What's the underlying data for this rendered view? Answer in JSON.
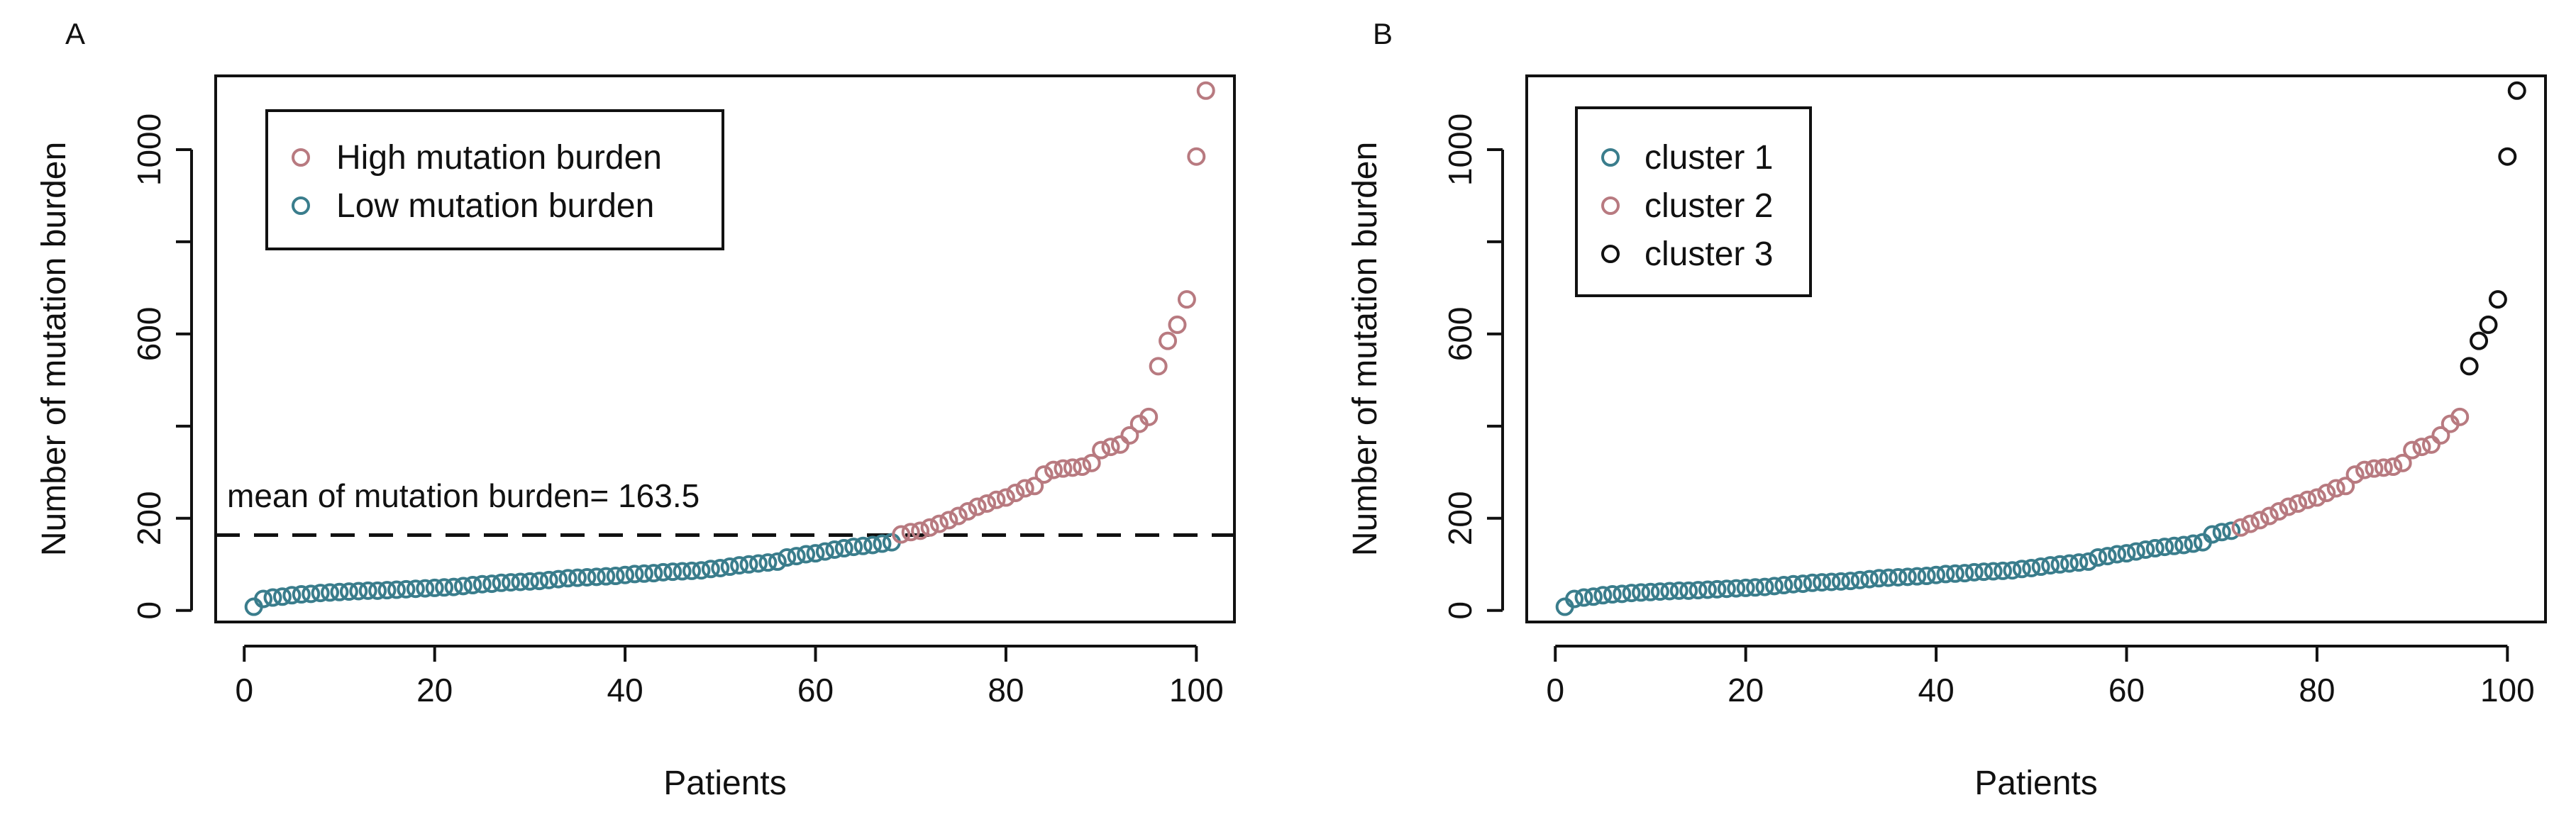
{
  "figure": {
    "panels": [
      {
        "letter": "A",
        "title": "",
        "xlabel": "Patients",
        "ylabel": "Number of mutation burden",
        "xticks": [
          0,
          20,
          40,
          60,
          80,
          100
        ],
        "yticks": [
          0,
          200,
          600,
          1000
        ],
        "ylabel_ticks_extra": [
          400,
          800
        ],
        "annotation": "mean of mutation burden= 163.5",
        "mean_value": 163.5,
        "legend": [
          {
            "label": "High mutation burden",
            "color": "#b87a80"
          },
          {
            "label": "Low mutation burden",
            "color": "#3a7d8c"
          }
        ]
      },
      {
        "letter": "B",
        "title": "",
        "xlabel": "Patients",
        "ylabel": "Number of mutation burden",
        "xticks": [
          0,
          20,
          40,
          60,
          80,
          100
        ],
        "yticks": [
          0,
          200,
          600,
          1000
        ],
        "ylabel_ticks_extra": [
          400,
          800
        ],
        "legend": [
          {
            "label": "cluster 1",
            "color": "#3a7d8c"
          },
          {
            "label": "cluster 2",
            "color": "#b87a80"
          },
          {
            "label": "cluster 3",
            "color": "#111111"
          }
        ]
      }
    ]
  },
  "chart_data": [
    {
      "type": "scatter",
      "title": "",
      "xlabel": "Patients",
      "ylabel": "Number of mutation burden",
      "xlim": [
        -3,
        104
      ],
      "ylim": [
        -25,
        1160
      ],
      "grid": false,
      "legend_position": "top-left",
      "hline": {
        "y": 163.5,
        "style": "dashed",
        "label": "mean of mutation burden= 163.5"
      },
      "x": [
        1,
        2,
        3,
        4,
        5,
        6,
        7,
        8,
        9,
        10,
        11,
        12,
        13,
        14,
        15,
        16,
        17,
        18,
        19,
        20,
        21,
        22,
        23,
        24,
        25,
        26,
        27,
        28,
        29,
        30,
        31,
        32,
        33,
        34,
        35,
        36,
        37,
        38,
        39,
        40,
        41,
        42,
        43,
        44,
        45,
        46,
        47,
        48,
        49,
        50,
        51,
        52,
        53,
        54,
        55,
        56,
        57,
        58,
        59,
        60,
        61,
        62,
        63,
        64,
        65,
        66,
        67,
        68,
        69,
        70,
        71,
        72,
        73,
        74,
        75,
        76,
        77,
        78,
        79,
        80,
        81,
        82,
        83,
        84,
        85,
        86,
        87,
        88,
        89,
        90,
        91,
        92,
        93,
        94,
        95,
        96,
        97,
        98,
        99,
        100,
        101
      ],
      "y": [
        8,
        25,
        28,
        30,
        33,
        35,
        36,
        38,
        39,
        40,
        41,
        42,
        43,
        43,
        44,
        45,
        46,
        47,
        48,
        49,
        50,
        51,
        53,
        55,
        57,
        58,
        60,
        61,
        62,
        63,
        64,
        66,
        68,
        70,
        71,
        72,
        73,
        74,
        75,
        77,
        79,
        80,
        81,
        83,
        84,
        85,
        86,
        87,
        90,
        92,
        95,
        98,
        100,
        102,
        104,
        106,
        115,
        118,
        122,
        124,
        128,
        132,
        135,
        138,
        140,
        142,
        145,
        148,
        165,
        170,
        173,
        180,
        188,
        196,
        205,
        215,
        225,
        232,
        240,
        245,
        255,
        265,
        270,
        295,
        305,
        308,
        310,
        312,
        320,
        348,
        355,
        360,
        380,
        405,
        420,
        530,
        585,
        620,
        675,
        985,
        1128
      ],
      "series": [
        {
          "name": "High mutation burden",
          "color": "#b87a80",
          "from_index": 69,
          "to_index": 101
        },
        {
          "name": "Low mutation burden",
          "color": "#3a7d8c",
          "from_index": 1,
          "to_index": 68
        }
      ]
    },
    {
      "type": "scatter",
      "title": "",
      "xlabel": "Patients",
      "ylabel": "Number of mutation burden",
      "xlim": [
        -3,
        104
      ],
      "ylim": [
        -25,
        1160
      ],
      "grid": false,
      "legend_position": "top-left",
      "x": [
        1,
        2,
        3,
        4,
        5,
        6,
        7,
        8,
        9,
        10,
        11,
        12,
        13,
        14,
        15,
        16,
        17,
        18,
        19,
        20,
        21,
        22,
        23,
        24,
        25,
        26,
        27,
        28,
        29,
        30,
        31,
        32,
        33,
        34,
        35,
        36,
        37,
        38,
        39,
        40,
        41,
        42,
        43,
        44,
        45,
        46,
        47,
        48,
        49,
        50,
        51,
        52,
        53,
        54,
        55,
        56,
        57,
        58,
        59,
        60,
        61,
        62,
        63,
        64,
        65,
        66,
        67,
        68,
        69,
        70,
        71,
        72,
        73,
        74,
        75,
        76,
        77,
        78,
        79,
        80,
        81,
        82,
        83,
        84,
        85,
        86,
        87,
        88,
        89,
        90,
        91,
        92,
        93,
        94,
        95,
        96,
        97,
        98,
        99,
        100,
        101
      ],
      "y": [
        8,
        25,
        28,
        30,
        33,
        35,
        36,
        38,
        39,
        40,
        41,
        42,
        43,
        43,
        44,
        45,
        46,
        47,
        48,
        49,
        50,
        51,
        53,
        55,
        57,
        58,
        60,
        61,
        62,
        63,
        64,
        66,
        68,
        70,
        71,
        72,
        73,
        74,
        75,
        77,
        79,
        80,
        81,
        83,
        84,
        85,
        86,
        87,
        90,
        92,
        95,
        98,
        100,
        102,
        104,
        106,
        115,
        118,
        122,
        124,
        128,
        132,
        135,
        138,
        140,
        142,
        145,
        148,
        165,
        170,
        173,
        180,
        188,
        196,
        205,
        215,
        225,
        232,
        240,
        245,
        255,
        265,
        270,
        295,
        305,
        308,
        310,
        312,
        320,
        348,
        355,
        360,
        380,
        405,
        420,
        530,
        585,
        620,
        675,
        985,
        1128
      ],
      "series": [
        {
          "name": "cluster 1",
          "color": "#3a7d8c",
          "from_index": 1,
          "to_index": 71
        },
        {
          "name": "cluster 2",
          "color": "#b87a80",
          "from_index": 72,
          "to_index": 95
        },
        {
          "name": "cluster 3",
          "color": "#111111",
          "from_index": 96,
          "to_index": 101
        }
      ]
    }
  ]
}
